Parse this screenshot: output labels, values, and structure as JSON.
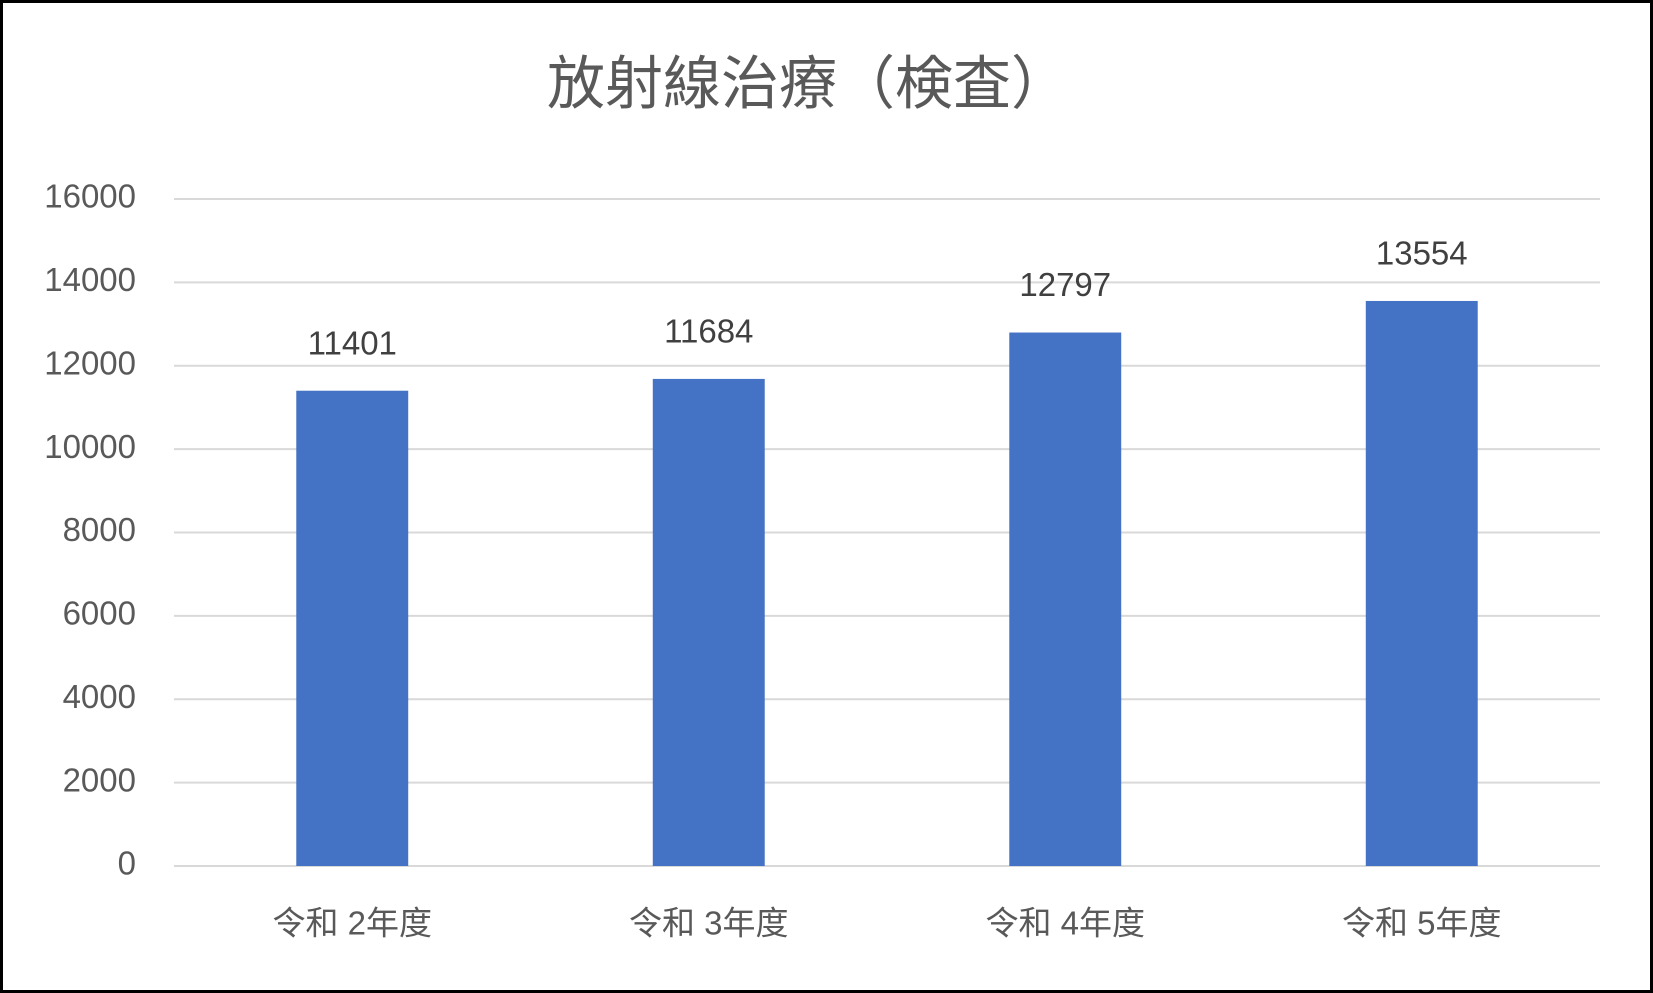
{
  "chart_data": {
    "type": "bar",
    "title": "放射線治療（検査）",
    "categories": [
      "令和 2年度",
      "令和 3年度",
      "令和 4年度",
      "令和 5年度"
    ],
    "values": [
      11401,
      11684,
      12797,
      13554
    ],
    "color": "#4472c4",
    "ylim": [
      0,
      16000
    ],
    "yticks": [
      0,
      2000,
      4000,
      6000,
      8000,
      10000,
      12000,
      14000,
      16000
    ],
    "grid": true
  }
}
